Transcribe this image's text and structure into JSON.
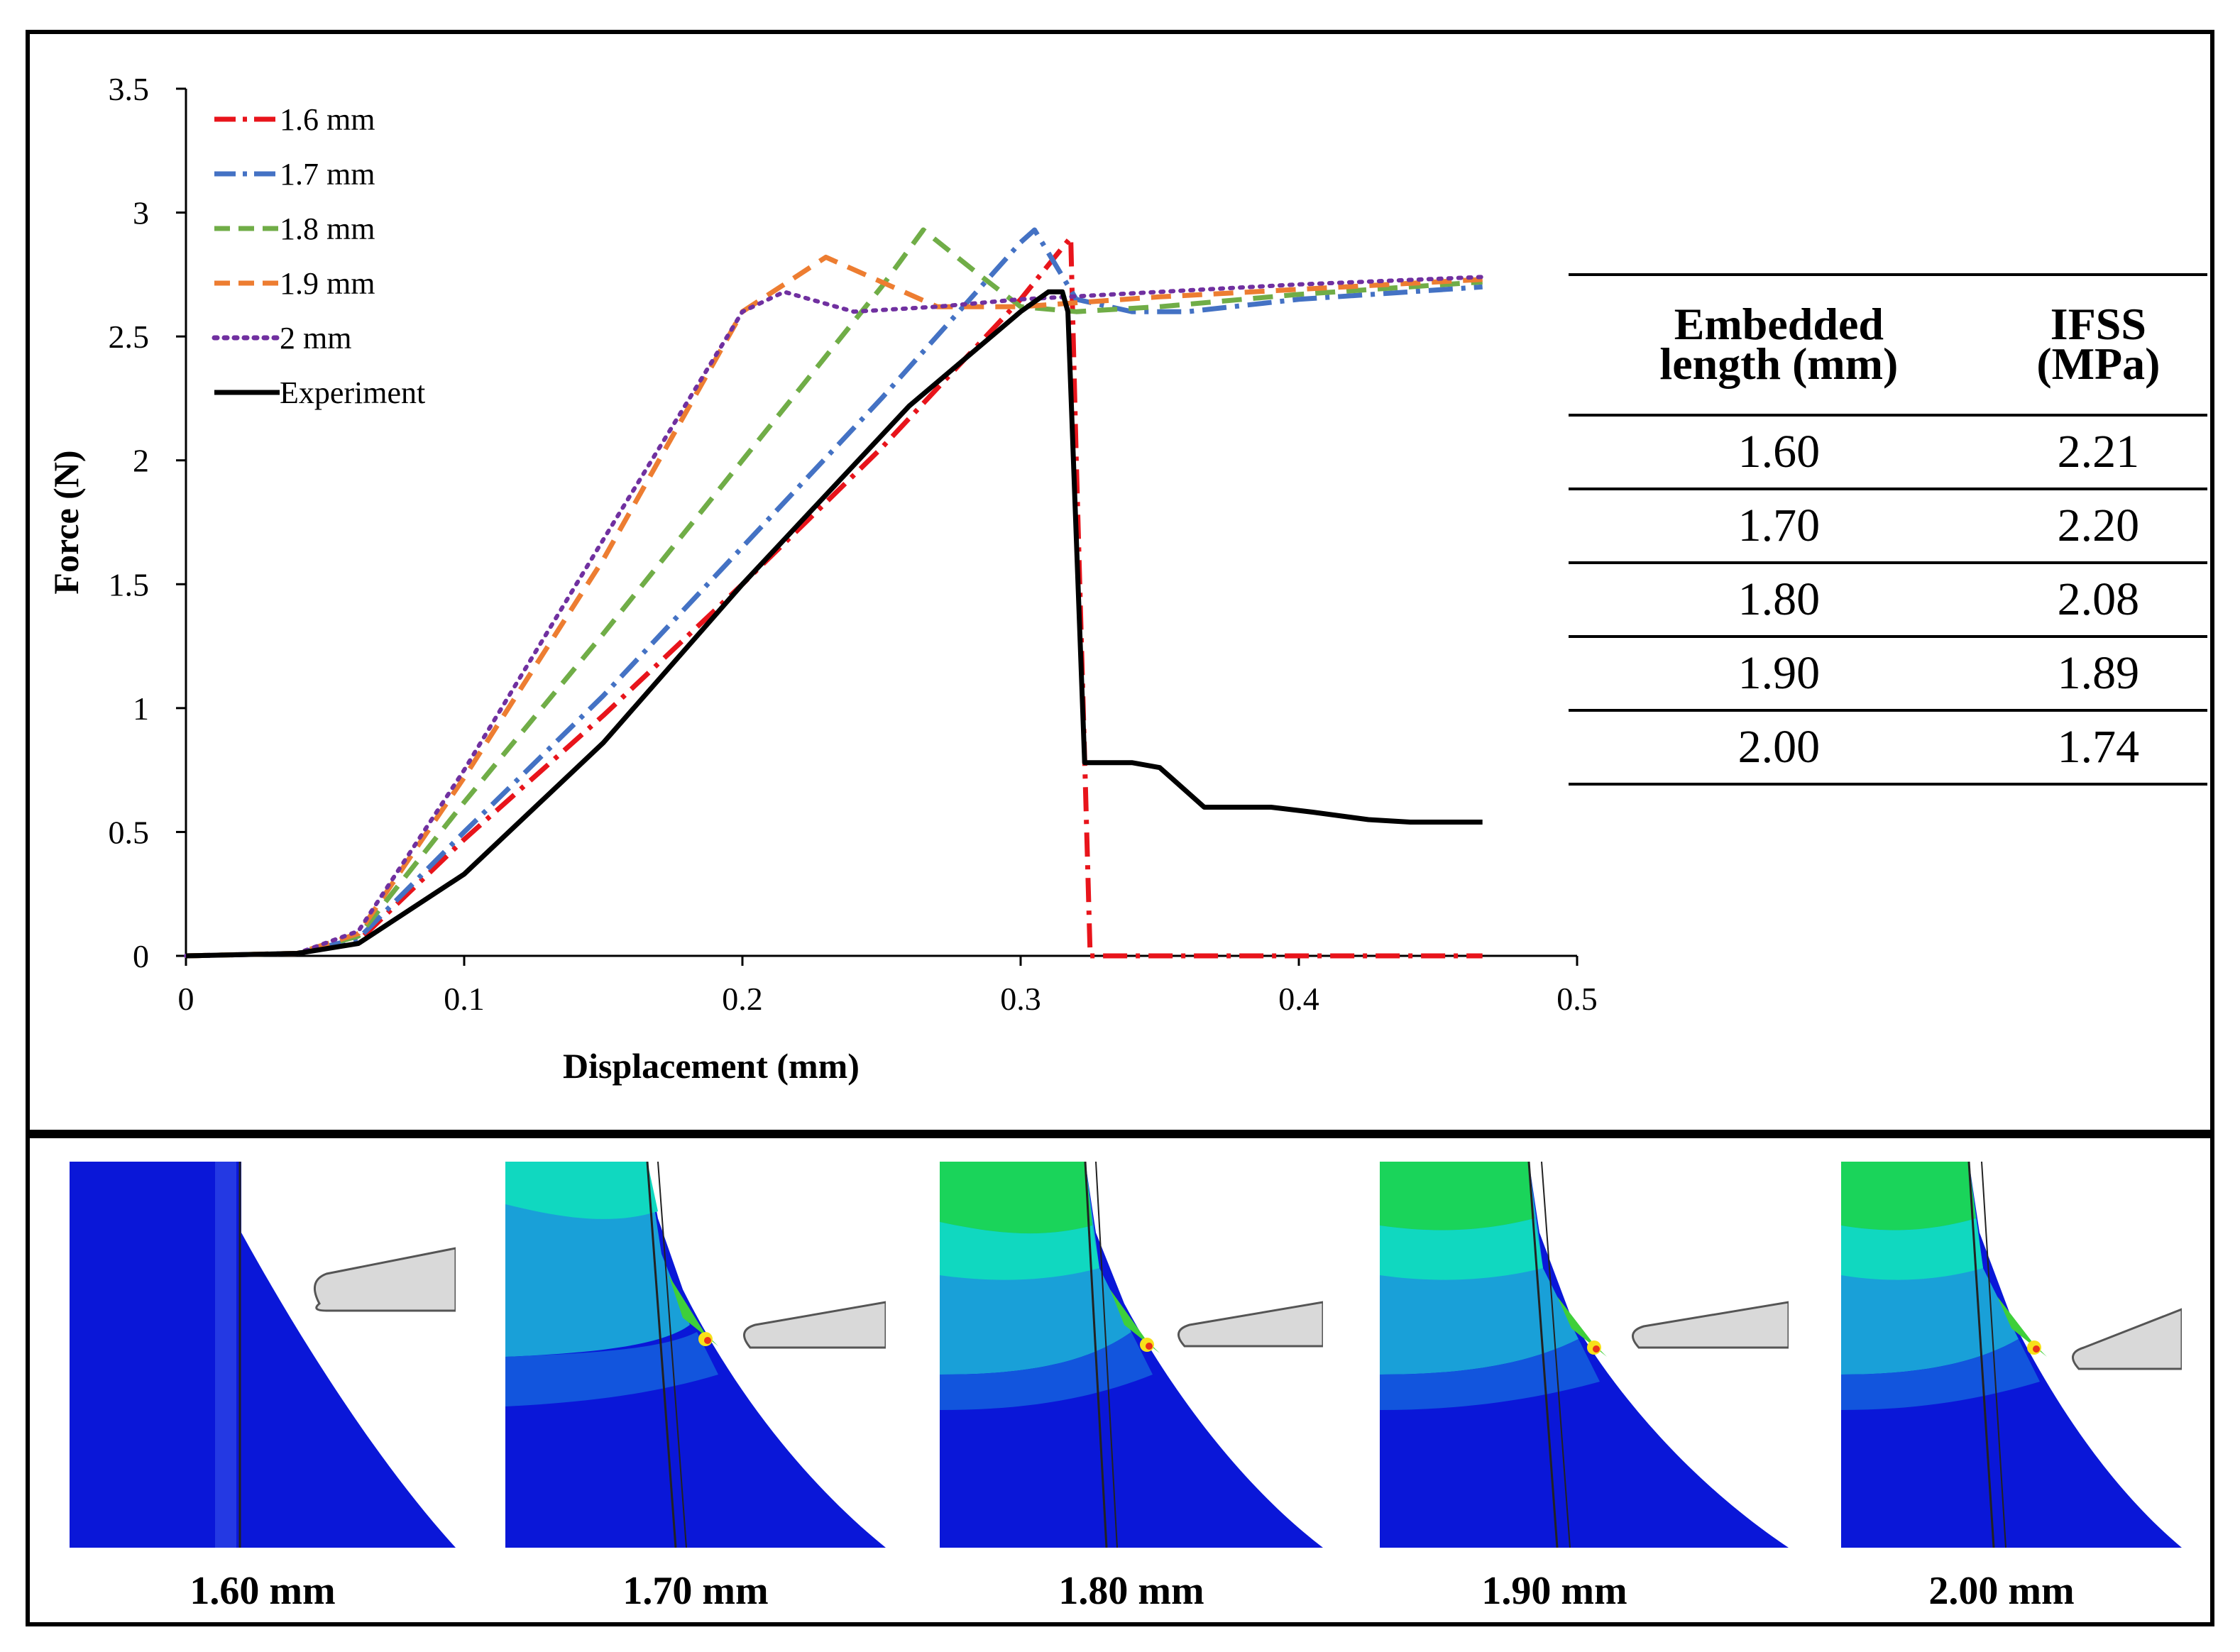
{
  "chart_data": {
    "type": "line",
    "xlabel": "Displacement (mm)",
    "ylabel": "Force (N)",
    "xlim": [
      0,
      0.5
    ],
    "ylim": [
      0,
      3.5
    ],
    "xticks": [
      "0",
      "0.1",
      "0.2",
      "0.3",
      "0.4",
      "0.5"
    ],
    "yticks": [
      "0",
      "0.5",
      "1",
      "1.5",
      "2",
      "2.5",
      "3",
      "3.5"
    ],
    "legend_position": "top-left",
    "series": [
      {
        "name": "1.6 mm",
        "color": "#e8141b",
        "style": "dashdot",
        "x": [
          0,
          0.04,
          0.062,
          0.1,
          0.15,
          0.2,
          0.25,
          0.3,
          0.318,
          0.32,
          0.325,
          0.33,
          0.4,
          0.466
        ],
        "y": [
          0,
          0.01,
          0.06,
          0.47,
          0.97,
          1.5,
          2.05,
          2.65,
          2.9,
          2.0,
          0.0,
          0.0,
          0.0,
          0.0
        ]
      },
      {
        "name": "1.7 mm",
        "color": "#4472c4",
        "style": "dashdot",
        "x": [
          0,
          0.04,
          0.062,
          0.1,
          0.15,
          0.2,
          0.25,
          0.3,
          0.305,
          0.32,
          0.34,
          0.36,
          0.4,
          0.466
        ],
        "y": [
          0,
          0.01,
          0.07,
          0.5,
          1.05,
          1.65,
          2.25,
          2.88,
          2.93,
          2.65,
          2.6,
          2.6,
          2.65,
          2.7
        ]
      },
      {
        "name": "1.8 mm",
        "color": "#70ad47",
        "style": "dashed",
        "x": [
          0,
          0.04,
          0.062,
          0.1,
          0.15,
          0.2,
          0.25,
          0.265,
          0.285,
          0.3,
          0.32,
          0.35,
          0.4,
          0.466
        ],
        "y": [
          0,
          0.01,
          0.08,
          0.62,
          1.3,
          2.0,
          2.7,
          2.93,
          2.75,
          2.62,
          2.6,
          2.62,
          2.67,
          2.72
        ]
      },
      {
        "name": "1.9 mm",
        "color": "#ed7d31",
        "style": "dashed",
        "x": [
          0,
          0.04,
          0.062,
          0.1,
          0.15,
          0.2,
          0.23,
          0.25,
          0.27,
          0.3,
          0.35,
          0.4,
          0.466
        ],
        "y": [
          0,
          0.01,
          0.09,
          0.72,
          1.6,
          2.6,
          2.82,
          2.72,
          2.62,
          2.62,
          2.66,
          2.69,
          2.73
        ]
      },
      {
        "name": "2 mm",
        "color": "#7030a0",
        "style": "dotted",
        "x": [
          0,
          0.04,
          0.062,
          0.1,
          0.15,
          0.2,
          0.215,
          0.24,
          0.27,
          0.3,
          0.35,
          0.4,
          0.466
        ],
        "y": [
          0,
          0.01,
          0.1,
          0.75,
          1.68,
          2.6,
          2.68,
          2.6,
          2.62,
          2.65,
          2.68,
          2.71,
          2.74
        ]
      },
      {
        "name": "Experiment",
        "color": "#000000",
        "style": "solid",
        "x": [
          0,
          0.04,
          0.062,
          0.1,
          0.15,
          0.2,
          0.26,
          0.3,
          0.31,
          0.315,
          0.317,
          0.323,
          0.34,
          0.35,
          0.366,
          0.39,
          0.405,
          0.425,
          0.44,
          0.466
        ],
        "y": [
          0,
          0.01,
          0.05,
          0.33,
          0.86,
          1.5,
          2.22,
          2.6,
          2.68,
          2.68,
          2.6,
          0.78,
          0.78,
          0.76,
          0.6,
          0.6,
          0.58,
          0.55,
          0.54,
          0.54
        ]
      }
    ]
  },
  "table": {
    "headers": [
      "Embedded length (mm)",
      "IFSS (MPa)"
    ],
    "header_lines": [
      [
        "Embedded",
        "length (mm)"
      ],
      [
        "IFSS",
        "(MPa)"
      ]
    ],
    "rows": [
      [
        "1.60",
        "2.21"
      ],
      [
        "1.70",
        "2.20"
      ],
      [
        "1.80",
        "2.08"
      ],
      [
        "1.90",
        "1.89"
      ],
      [
        "2.00",
        "1.74"
      ]
    ]
  },
  "panels": [
    {
      "label": "1.60 mm"
    },
    {
      "label": "1.70 mm"
    },
    {
      "label": "1.80 mm"
    },
    {
      "label": "1.90 mm"
    },
    {
      "label": "2.00 mm"
    }
  ]
}
